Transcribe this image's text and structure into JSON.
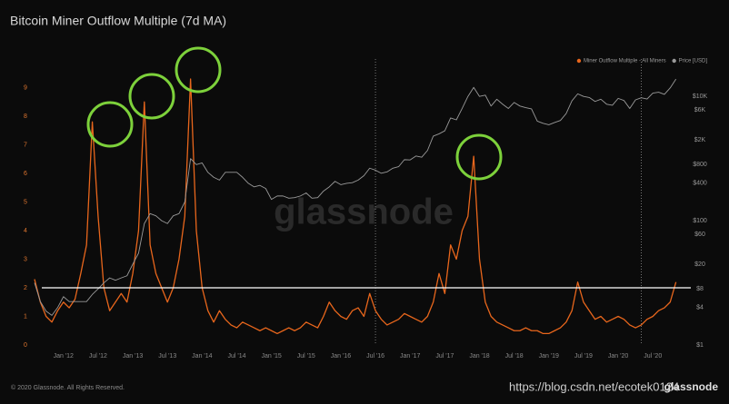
{
  "chart_data": {
    "type": "line",
    "title": "Bitcoin Miner Outflow Multiple (7d MA)",
    "footer": "© 2020 Glassnode. All Rights Reserved.",
    "watermark": "glassnode",
    "logo": "glassnode",
    "source_watermark": "https://blog.csdn.net/ecotek0124",
    "x": [
      "2011-08",
      "2011-09",
      "2011-10",
      "2011-11",
      "2011-12",
      "2012-01",
      "2012-02",
      "2012-03",
      "2012-04",
      "2012-05",
      "2012-06",
      "2012-07",
      "2012-08",
      "2012-09",
      "2012-10",
      "2012-11",
      "2012-12",
      "2013-01",
      "2013-02",
      "2013-03",
      "2013-04",
      "2013-05",
      "2013-06",
      "2013-07",
      "2013-08",
      "2013-09",
      "2013-10",
      "2013-11",
      "2013-12",
      "2014-01",
      "2014-02",
      "2014-03",
      "2014-04",
      "2014-05",
      "2014-06",
      "2014-07",
      "2014-08",
      "2014-09",
      "2014-10",
      "2014-11",
      "2014-12",
      "2015-01",
      "2015-02",
      "2015-03",
      "2015-04",
      "2015-05",
      "2015-06",
      "2015-07",
      "2015-08",
      "2015-09",
      "2015-10",
      "2015-11",
      "2015-12",
      "2016-01",
      "2016-02",
      "2016-03",
      "2016-04",
      "2016-05",
      "2016-06",
      "2016-07",
      "2016-08",
      "2016-09",
      "2016-10",
      "2016-11",
      "2016-12",
      "2017-01",
      "2017-02",
      "2017-03",
      "2017-04",
      "2017-05",
      "2017-06",
      "2017-07",
      "2017-08",
      "2017-09",
      "2017-10",
      "2017-11",
      "2017-12",
      "2018-01",
      "2018-02",
      "2018-03",
      "2018-04",
      "2018-05",
      "2018-06",
      "2018-07",
      "2018-08",
      "2018-09",
      "2018-10",
      "2018-11",
      "2018-12",
      "2019-01",
      "2019-02",
      "2019-03",
      "2019-04",
      "2019-05",
      "2019-06",
      "2019-07",
      "2019-08",
      "2019-09",
      "2019-10",
      "2019-11",
      "2019-12",
      "2020-01",
      "2020-02",
      "2020-03",
      "2020-04",
      "2020-05",
      "2020-06",
      "2020-07",
      "2020-08",
      "2020-09",
      "2020-10",
      "2020-11"
    ],
    "xlim": [
      "2011-08",
      "2020-12"
    ],
    "xticks": [
      {
        "value": "2012-01",
        "label": "Jan '12"
      },
      {
        "value": "2012-07",
        "label": "Jul '12"
      },
      {
        "value": "2013-01",
        "label": "Jan '13"
      },
      {
        "value": "2013-07",
        "label": "Jul '13"
      },
      {
        "value": "2014-01",
        "label": "Jan '14"
      },
      {
        "value": "2014-07",
        "label": "Jul '14"
      },
      {
        "value": "2015-01",
        "label": "Jan '15"
      },
      {
        "value": "2015-07",
        "label": "Jul '15"
      },
      {
        "value": "2016-01",
        "label": "Jan '16"
      },
      {
        "value": "2016-07",
        "label": "Jul '16"
      },
      {
        "value": "2017-01",
        "label": "Jan '17"
      },
      {
        "value": "2017-07",
        "label": "Jul '17"
      },
      {
        "value": "2018-01",
        "label": "Jan '18"
      },
      {
        "value": "2018-07",
        "label": "Jul '18"
      },
      {
        "value": "2019-01",
        "label": "Jan '19"
      },
      {
        "value": "2019-07",
        "label": "Jul '19"
      },
      {
        "value": "2020-01",
        "label": "Jan '20"
      },
      {
        "value": "2020-07",
        "label": "Jul '20"
      }
    ],
    "ylim": [
      0,
      10
    ],
    "yticks": [
      0,
      1,
      2,
      3,
      4,
      5,
      6,
      7,
      8,
      9
    ],
    "y2lim": [
      1,
      40000
    ],
    "y2_log": true,
    "y2ticks": [
      {
        "value": 1,
        "label": "$1"
      },
      {
        "value": 4,
        "label": "$4"
      },
      {
        "value": 8,
        "label": "$8"
      },
      {
        "value": 20,
        "label": "$20"
      },
      {
        "value": 60,
        "label": "$60"
      },
      {
        "value": 100,
        "label": "$100"
      },
      {
        "value": 400,
        "label": "$400"
      },
      {
        "value": 800,
        "label": "$800"
      },
      {
        "value": 2000,
        "label": "$2K"
      },
      {
        "value": 6000,
        "label": "$6K"
      },
      {
        "value": 10000,
        "label": "$10K"
      }
    ],
    "hline": 2,
    "vlines": [
      "2016-07",
      "2020-05"
    ],
    "legend": "top-right",
    "series": [
      {
        "name": "Miner Outflow Multiple - All Miners",
        "color": "#e8661c",
        "values": [
          2.3,
          1.5,
          1.0,
          0.8,
          1.2,
          1.5,
          1.3,
          1.6,
          2.5,
          3.5,
          7.8,
          4.5,
          2.0,
          1.2,
          1.5,
          1.8,
          1.5,
          2.5,
          4.0,
          8.5,
          3.5,
          2.5,
          2.0,
          1.5,
          2.0,
          3.0,
          4.5,
          9.3,
          4.0,
          2.0,
          1.2,
          0.8,
          1.2,
          0.9,
          0.7,
          0.6,
          0.8,
          0.7,
          0.6,
          0.5,
          0.6,
          0.5,
          0.4,
          0.5,
          0.6,
          0.5,
          0.6,
          0.8,
          0.7,
          0.6,
          1.0,
          1.5,
          1.2,
          1.0,
          0.9,
          1.2,
          1.3,
          1.0,
          1.8,
          1.2,
          0.9,
          0.7,
          0.8,
          0.9,
          1.1,
          1.0,
          0.9,
          0.8,
          1.0,
          1.5,
          2.5,
          1.8,
          3.5,
          3.0,
          4.0,
          4.5,
          6.6,
          3.0,
          1.5,
          1.0,
          0.8,
          0.7,
          0.6,
          0.5,
          0.5,
          0.6,
          0.5,
          0.5,
          0.4,
          0.4,
          0.5,
          0.6,
          0.8,
          1.2,
          2.2,
          1.5,
          1.2,
          0.9,
          1.0,
          0.8,
          0.9,
          1.0,
          0.9,
          0.7,
          0.6,
          0.7,
          0.9,
          1.0,
          1.2,
          1.3,
          1.5,
          2.2
        ]
      },
      {
        "name": "Price [USD]",
        "color": "#9a9a9a",
        "axis": "y2",
        "values": [
          10,
          5,
          3.5,
          3,
          4,
          6,
          5,
          5,
          5,
          5,
          6.5,
          8,
          10,
          12,
          11,
          12,
          13,
          20,
          30,
          90,
          130,
          120,
          100,
          90,
          120,
          130,
          200,
          1000,
          800,
          850,
          600,
          500,
          450,
          600,
          600,
          600,
          500,
          400,
          350,
          370,
          330,
          220,
          250,
          250,
          230,
          235,
          250,
          280,
          230,
          235,
          300,
          350,
          430,
          380,
          400,
          410,
          450,
          530,
          700,
          650,
          580,
          610,
          700,
          740,
          960,
          950,
          1100,
          1050,
          1350,
          2300,
          2500,
          2800,
          4500,
          4200,
          6400,
          10000,
          14000,
          10000,
          10500,
          7000,
          9000,
          7500,
          6400,
          8000,
          7000,
          6600,
          6300,
          4000,
          3700,
          3500,
          3800,
          4100,
          5300,
          8500,
          11000,
          10000,
          9600,
          8300,
          9000,
          7500,
          7200,
          9300,
          8600,
          6400,
          8800,
          9500,
          9100,
          11300,
          11700,
          10800,
          13700,
          19000
        ]
      }
    ]
  }
}
